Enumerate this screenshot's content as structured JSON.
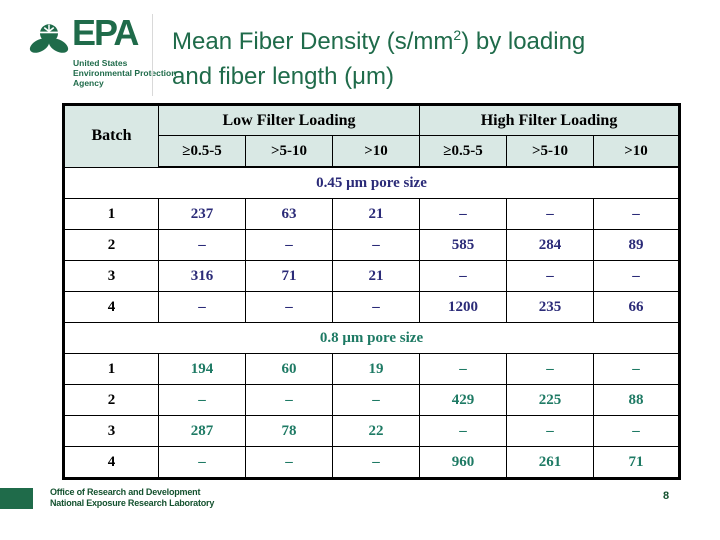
{
  "slide": {
    "logo": {
      "brand": "EPA",
      "sub_lines": [
        "United States",
        "Environmental Protection",
        "Agency"
      ]
    },
    "title": {
      "line1_pre": "Mean Fiber Density (s/mm",
      "sup": "2",
      "line1_post": ") by loading",
      "line2": "and fiber length (μm)"
    },
    "footer": {
      "line1": "Office of Research and Development",
      "line2": "National Exposure Research Laboratory",
      "page": "8"
    }
  },
  "table": {
    "batch_header": "Batch",
    "group_headers": [
      "Low Filter Loading",
      "High Filter Loading"
    ],
    "range_headers": [
      "≥0.5-5",
      ">5-10",
      ">10",
      "≥0.5-5",
      ">5-10",
      ">10"
    ],
    "sections": [
      {
        "label": "0.45 μm pore size",
        "color": "#2b2b78",
        "rows": [
          {
            "batch": "1",
            "values": [
              "237",
              "63",
              "21",
              "–",
              "–",
              "–"
            ]
          },
          {
            "batch": "2",
            "values": [
              "–",
              "–",
              "–",
              "585",
              "284",
              "89"
            ]
          },
          {
            "batch": "3",
            "values": [
              "316",
              "71",
              "21",
              "–",
              "–",
              "–"
            ]
          },
          {
            "batch": "4",
            "values": [
              "–",
              "–",
              "–",
              "1200",
              "235",
              "66"
            ]
          }
        ]
      },
      {
        "label": "0.8 μm pore size",
        "color": "#1e7a64",
        "rows": [
          {
            "batch": "1",
            "values": [
              "194",
              "60",
              "19",
              "–",
              "–",
              "–"
            ]
          },
          {
            "batch": "2",
            "values": [
              "–",
              "–",
              "–",
              "429",
              "225",
              "88"
            ]
          },
          {
            "batch": "3",
            "values": [
              "287",
              "78",
              "22",
              "–",
              "–",
              "–"
            ]
          },
          {
            "batch": "4",
            "values": [
              "–",
              "–",
              "–",
              "960",
              "261",
              "71"
            ]
          }
        ]
      }
    ]
  },
  "colors": {
    "epa_green": "#1f6b4a",
    "navy_section": "#2b2b78",
    "teal_section": "#1e7a64",
    "header_fill": "#d9e8e4",
    "footer_green": "#14522f"
  }
}
